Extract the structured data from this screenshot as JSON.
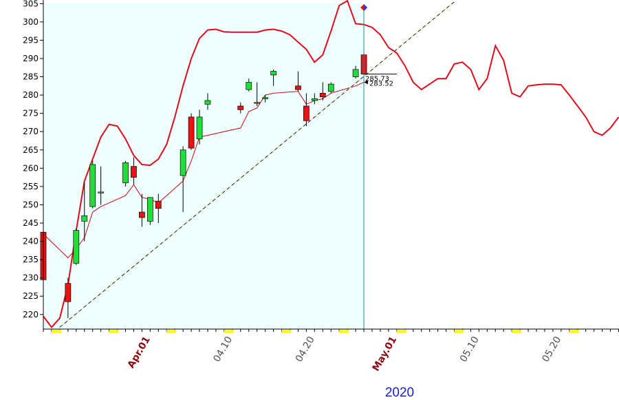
{
  "colors": {
    "background": "#ffffff",
    "history_shade": "#effefe",
    "axis": "#000000",
    "up_candle": "#1ee03a",
    "down_candle": "#e81414",
    "upper_band": "#e00a1a",
    "moving_average": "#cc0a14",
    "trendline": "#1a1a66",
    "trendline_dash": "#e8e860",
    "month_label": "#8b0a14",
    "day_label": "#505050",
    "year_label": "#1a1adc",
    "marker_line": "#1a8c8c",
    "axis_tick_block": "#ffff00"
  },
  "chart_data": {
    "type": "candlestick",
    "ylim": [
      216,
      306
    ],
    "yticks": [
      220,
      225,
      230,
      235,
      240,
      245,
      250,
      255,
      260,
      265,
      270,
      275,
      280,
      285,
      290,
      295,
      300,
      305
    ],
    "x_labels": [
      {
        "text": "Apr.01",
        "x": 13,
        "kind": "month"
      },
      {
        "text": "04.10",
        "x": 23,
        "kind": "day"
      },
      {
        "text": "04.20",
        "x": 33,
        "kind": "day"
      },
      {
        "text": "May.01",
        "x": 43,
        "kind": "month"
      },
      {
        "text": "05.10",
        "x": 53,
        "kind": "day"
      },
      {
        "text": "05.20",
        "x": 63,
        "kind": "day"
      }
    ],
    "year": "2020",
    "x_range": [
      0,
      70
    ],
    "current_index": 39,
    "price_labels": [
      "285.73",
      "283.52"
    ],
    "candles": [
      {
        "i": 0,
        "o": 242.5,
        "h": 244.0,
        "l": 228.5,
        "c": 229.5
      },
      {
        "i": 3,
        "o": 228.5,
        "h": 230.0,
        "l": 219.0,
        "c": 223.5
      },
      {
        "i": 4,
        "o": 234.0,
        "h": 243.5,
        "l": 233.5,
        "c": 243.0
      },
      {
        "i": 5,
        "o": 245.5,
        "h": 256.0,
        "l": 240.0,
        "c": 247.0
      },
      {
        "i": 6,
        "o": 249.5,
        "h": 262.0,
        "l": 249.0,
        "c": 261.0
      },
      {
        "i": 7,
        "o": 253.5,
        "h": 260.5,
        "l": 250.0,
        "c": 253.5
      },
      {
        "i": 10,
        "o": 256.0,
        "h": 262.0,
        "l": 255.0,
        "c": 261.5
      },
      {
        "i": 11,
        "o": 260.5,
        "h": 263.0,
        "l": 255.5,
        "c": 257.5
      },
      {
        "i": 12,
        "o": 248.0,
        "h": 253.0,
        "l": 244.0,
        "c": 246.5
      },
      {
        "i": 13,
        "o": 245.5,
        "h": 252.0,
        "l": 244.5,
        "c": 252.0
      },
      {
        "i": 14,
        "o": 251.0,
        "h": 253.0,
        "l": 245.0,
        "c": 249.0
      },
      {
        "i": 17,
        "o": 258.0,
        "h": 266.0,
        "l": 248.0,
        "c": 265.0
      },
      {
        "i": 18,
        "o": 274.0,
        "h": 275.0,
        "l": 265.0,
        "c": 265.5
      },
      {
        "i": 19,
        "o": 268.0,
        "h": 276.0,
        "l": 266.5,
        "c": 274.0
      },
      {
        "i": 20,
        "o": 277.5,
        "h": 280.5,
        "l": 276.0,
        "c": 278.5
      },
      {
        "i": 24,
        "o": 277.0,
        "h": 278.0,
        "l": 275.0,
        "c": 276.0
      },
      {
        "i": 25,
        "o": 281.5,
        "h": 284.5,
        "l": 281.0,
        "c": 283.5
      },
      {
        "i": 26,
        "o": 278.0,
        "h": 283.5,
        "l": 277.0,
        "c": 278.0
      },
      {
        "i": 27,
        "o": 279.0,
        "h": 280.0,
        "l": 278.0,
        "c": 279.3
      },
      {
        "i": 28,
        "o": 285.5,
        "h": 287.0,
        "l": 282.5,
        "c": 286.5
      },
      {
        "i": 31,
        "o": 282.5,
        "h": 286.5,
        "l": 281.0,
        "c": 281.5
      },
      {
        "i": 32,
        "o": 277.0,
        "h": 280.5,
        "l": 271.5,
        "c": 273.0
      },
      {
        "i": 33,
        "o": 278.5,
        "h": 280.5,
        "l": 277.5,
        "c": 279.0
      },
      {
        "i": 34,
        "o": 280.5,
        "h": 283.5,
        "l": 278.5,
        "c": 279.5
      },
      {
        "i": 35,
        "o": 281.0,
        "h": 283.5,
        "l": 280.5,
        "c": 283.0
      },
      {
        "i": 38,
        "o": 285.0,
        "h": 288.0,
        "l": 284.5,
        "c": 287.0
      },
      {
        "i": 39,
        "o": 291.0,
        "h": 291.5,
        "l": 285.5,
        "c": 285.73
      }
    ],
    "upper_band": [
      [
        0,
        219.5
      ],
      [
        1,
        216.5
      ],
      [
        2,
        219.0
      ],
      [
        3,
        228.0
      ],
      [
        4,
        243.0
      ],
      [
        5,
        256.5
      ],
      [
        6,
        262.5
      ],
      [
        7,
        268.5
      ],
      [
        8,
        272.0
      ],
      [
        9,
        271.5
      ],
      [
        10,
        268.0
      ],
      [
        11,
        263.5
      ],
      [
        12,
        261.0
      ],
      [
        13,
        260.8
      ],
      [
        14,
        262.5
      ],
      [
        15,
        266.5
      ],
      [
        16,
        274.0
      ],
      [
        17,
        282.5
      ],
      [
        18,
        290.0
      ],
      [
        19,
        295.5
      ],
      [
        20,
        297.8
      ],
      [
        21,
        298.0
      ],
      [
        22,
        297.3
      ],
      [
        23,
        297.2
      ],
      [
        24,
        297.2
      ],
      [
        25,
        297.2
      ],
      [
        26,
        297.2
      ],
      [
        27,
        297.8
      ],
      [
        28,
        298.0
      ],
      [
        29,
        297.5
      ],
      [
        30,
        296.5
      ],
      [
        31,
        294.5
      ],
      [
        32,
        292.5
      ],
      [
        33,
        289.0
      ],
      [
        34,
        291.0
      ],
      [
        35,
        297.5
      ],
      [
        36,
        304.5
      ],
      [
        37,
        305.8
      ],
      [
        38,
        299.5
      ],
      [
        39,
        299.3
      ],
      [
        40,
        298.5
      ],
      [
        41,
        296.5
      ],
      [
        42,
        293.0
      ],
      [
        43,
        291.5
      ],
      [
        44,
        288.0
      ],
      [
        45,
        283.5
      ],
      [
        46,
        281.5
      ],
      [
        47,
        283.0
      ],
      [
        48,
        284.5
      ],
      [
        49,
        284.5
      ],
      [
        50,
        288.5
      ],
      [
        51,
        289.0
      ],
      [
        52,
        287.0
      ],
      [
        53,
        281.5
      ],
      [
        54,
        284.5
      ],
      [
        55,
        293.5
      ],
      [
        56,
        289.5
      ],
      [
        57,
        280.5
      ],
      [
        58,
        279.5
      ],
      [
        59,
        282.5
      ],
      [
        60,
        282.8
      ],
      [
        61,
        283.0
      ],
      [
        62,
        283.0
      ],
      [
        63,
        282.8
      ],
      [
        64,
        280.0
      ],
      [
        65,
        277.0
      ],
      [
        66,
        274.0
      ],
      [
        67,
        270.0
      ],
      [
        68,
        269.0
      ],
      [
        69,
        271.0
      ],
      [
        70,
        274.0
      ]
    ],
    "moving_average": [
      [
        0,
        242.0
      ],
      [
        3,
        235.5
      ],
      [
        4,
        238.0
      ],
      [
        5,
        241.0
      ],
      [
        6,
        248.0
      ],
      [
        7,
        249.5
      ],
      [
        10,
        252.5
      ],
      [
        11,
        255.5
      ],
      [
        12,
        252.0
      ],
      [
        13,
        251.5
      ],
      [
        14,
        250.5
      ],
      [
        17,
        256.5
      ],
      [
        18,
        262.0
      ],
      [
        19,
        268.5
      ],
      [
        24,
        271.0
      ],
      [
        25,
        275.5
      ],
      [
        26,
        276.5
      ],
      [
        27,
        280.0
      ],
      [
        28,
        280.5
      ],
      [
        31,
        281.0
      ],
      [
        32,
        277.5
      ],
      [
        33,
        278.5
      ],
      [
        34,
        279.0
      ],
      [
        35,
        280.5
      ],
      [
        38,
        282.5
      ],
      [
        39,
        283.52
      ]
    ],
    "trendline": [
      [
        2,
        216.5
      ],
      [
        50,
        305.5
      ]
    ]
  }
}
